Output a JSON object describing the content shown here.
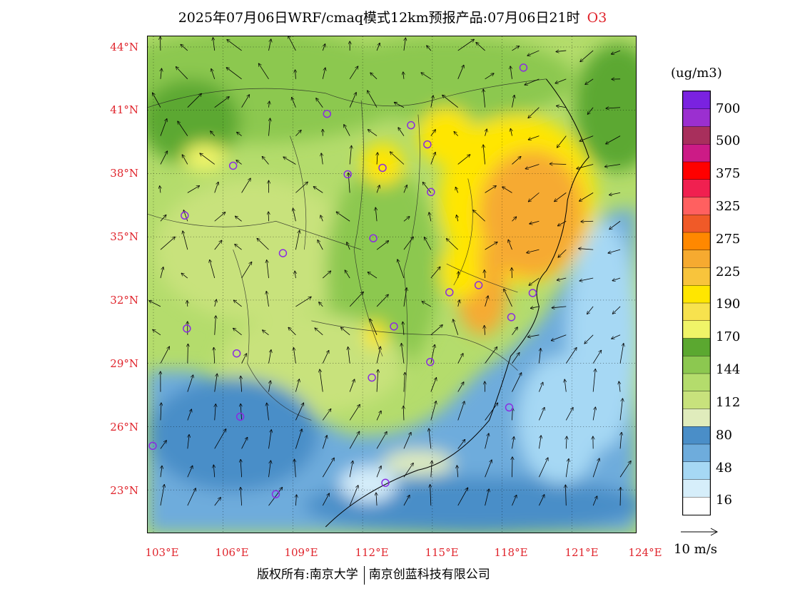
{
  "title": "2025年07月06日WRF/cmaq模式12km预报产品:07月06日21时",
  "species": "O3",
  "unit": "(ug/m3)",
  "lat_labels": [
    "44°N",
    "41°N",
    "38°N",
    "35°N",
    "32°N",
    "29°N",
    "26°N",
    "23°N"
  ],
  "lon_labels": [
    "103°E",
    "106°E",
    "109°E",
    "112°E",
    "115°E",
    "118°E",
    "121°E",
    "124°E"
  ],
  "colorbar": {
    "labels": [
      "700",
      "500",
      "375",
      "325",
      "275",
      "225",
      "190",
      "170",
      "144",
      "112",
      "80",
      "48",
      "16"
    ],
    "colors": [
      "#7a22e0",
      "#9b2fd0",
      "#a82f5c",
      "#cc1b86",
      "#ff0000",
      "#f02050",
      "#ff6060",
      "#f05a28",
      "#ff8800",
      "#f6aa30",
      "#f8c43c",
      "#ffe600",
      "#f7e24e",
      "#f0f468",
      "#5ba830",
      "#8cc850",
      "#b4dc6c",
      "#c8e27c",
      "#e0ecbc",
      "#4a8ec8",
      "#6eacdc",
      "#a6d8f4",
      "#d6eefa",
      "#ffffff"
    ]
  },
  "wind_ref": "10 m/s",
  "footer": {
    "left": "版权所有:南京大学",
    "right": "南京创蓝科技有限公司"
  },
  "colors": {
    "axis_label": "#e0242c",
    "monitor_circle": "#8a2be2"
  }
}
